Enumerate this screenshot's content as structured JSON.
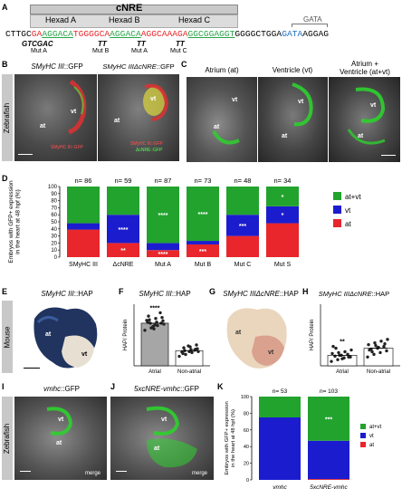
{
  "panelA": {
    "label": "A",
    "title": "cNRE",
    "hexads": [
      "Hexad A",
      "Hexad B",
      "Hexad C"
    ],
    "gata": "GATA",
    "seq": [
      {
        "t": "CTTGC",
        "c": "#000000"
      },
      {
        "t": "GA",
        "c": "#e8262b"
      },
      {
        "t": "AGGACA",
        "c": "#2aa44a"
      },
      {
        "t": "TGGGGCA",
        "c": "#e8262b"
      },
      {
        "t": "AGGACA",
        "c": "#2aa44a"
      },
      {
        "t": "AGGCAAAGA",
        "c": "#e8262b"
      },
      {
        "t": "GGCGGAGGT",
        "c": "#2aa44a"
      },
      {
        "t": "GGGGCTGGA",
        "c": "#000000"
      },
      {
        "t": "GATA",
        "c": "#1e6fc0"
      },
      {
        "t": "AGGAG",
        "c": "#000000"
      }
    ],
    "mutA_seq": "GTCGAC",
    "mutA_label": "Mut A",
    "tt": [
      "TT",
      "TT",
      "TT"
    ],
    "mut_labels": [
      "Mut B",
      "Mut A",
      "Mut C"
    ]
  },
  "panelB": {
    "label": "B",
    "side": "Zebrafish",
    "img1": {
      "title_gene": "SMyHC III",
      "title_rest": "::GFP",
      "vt": "vt",
      "at": "at",
      "leg1": "SMyHC III::GFP",
      "leg2": ""
    },
    "img2": {
      "title_gene": "SMyHC IIIΔcNRE",
      "title_rest": "::GFP",
      "vt": "vt",
      "at": "at",
      "leg1": "SMyHC III::GFP",
      "leg2": "ΔcNRE::GFP"
    }
  },
  "panelC": {
    "label": "C",
    "titles": [
      "Atrium (at)",
      "Ventricle (vt)",
      "Atrium +\nVentricle (at+vt)"
    ],
    "img1": {
      "vt": "vt",
      "at": "at"
    },
    "img2": {
      "vt": "vt",
      "at": "at"
    },
    "img3": {
      "vt": "vt",
      "at": "at"
    }
  },
  "panelD": {
    "label": "D",
    "chart_data": {
      "type": "bar",
      "stacked": true,
      "ylabel": "Embryos with GFP+ expression\nin the heart at 48 hpf (%)",
      "ylim": [
        0,
        100
      ],
      "yticks": [
        0,
        10,
        20,
        30,
        40,
        50,
        60,
        70,
        80,
        90,
        100
      ],
      "categories": [
        "SMyHC III",
        "ΔcNRE",
        "Mut A",
        "Mut B",
        "Mut C",
        "Mut S"
      ],
      "counts": [
        "n= 86",
        "n= 59",
        "n= 87",
        "n= 73",
        "n= 48",
        "n= 34"
      ],
      "series": [
        {
          "name": "at",
          "color": "#e8262b",
          "values": [
            39,
            20,
            10,
            18,
            30,
            48
          ]
        },
        {
          "name": "vt",
          "color": "#1c1ccf",
          "values": [
            9,
            40,
            10,
            5,
            30,
            24
          ]
        },
        {
          "name": "at+vt",
          "color": "#22a32e",
          "values": [
            52,
            40,
            80,
            77,
            40,
            28
          ]
        }
      ],
      "annotations": [
        {
          "cat": 1,
          "series": 0,
          "text": "**"
        },
        {
          "cat": 1,
          "series": 1,
          "text": "****"
        },
        {
          "cat": 2,
          "series": 0,
          "text": "****"
        },
        {
          "cat": 2,
          "series": 2,
          "text": "****"
        },
        {
          "cat": 3,
          "series": 0,
          "text": "***"
        },
        {
          "cat": 3,
          "series": 2,
          "text": "****"
        },
        {
          "cat": 4,
          "series": 1,
          "text": "***"
        },
        {
          "cat": 5,
          "series": 1,
          "text": "*"
        },
        {
          "cat": 5,
          "series": 2,
          "text": "*"
        }
      ],
      "legend": "right"
    }
  },
  "panelE": {
    "label": "E",
    "side": "Mouse",
    "title_gene": "SMyHC III",
    "title_rest": "::HAP",
    "at": "at",
    "vt": "vt"
  },
  "panelF": {
    "label": "F",
    "title_gene": "SMyHC III",
    "title_rest": "::HAP",
    "chart_data": {
      "type": "bar",
      "ylabel": "HAP/ Protein",
      "categories": [
        "Atrial",
        "Non-atrial"
      ],
      "values": [
        0.9,
        0.32
      ],
      "bar_colors": [
        "#a6a6a6",
        "#ffffff"
      ],
      "annotation": "****",
      "points": [
        [
          0.75,
          0.8,
          0.85,
          0.88,
          0.9,
          0.92,
          0.95,
          0.97,
          1.0,
          1.02,
          1.05,
          0.86,
          0.9,
          0.93,
          0.78,
          1.12,
          0.96,
          0.83
        ],
        [
          0.2,
          0.24,
          0.28,
          0.3,
          0.32,
          0.34,
          0.36,
          0.38,
          0.4,
          0.44,
          0.26,
          0.3,
          0.35,
          0.29,
          0.42,
          0.33
        ]
      ]
    }
  },
  "panelG": {
    "label": "G",
    "title_gene": "SMyHC IIIΔcNRE",
    "title_rest": "::HAP",
    "at": "at",
    "vt": "vt"
  },
  "panelH": {
    "label": "H",
    "title_gene": "SMyHC IIIΔcNRE",
    "title_rest": "::HAP",
    "chart_data": {
      "type": "bar",
      "ylabel": "HAP/ Protein",
      "categories": [
        "Atrial",
        "Non-atrial"
      ],
      "values": [
        0.12,
        0.2
      ],
      "bar_colors": [
        "#ffffff",
        "#ffffff"
      ],
      "annotation": "**",
      "points": [
        [
          0.05,
          0.07,
          0.09,
          0.1,
          0.11,
          0.12,
          0.13,
          0.14,
          0.15,
          0.16,
          0.18,
          0.2,
          0.08,
          0.1,
          0.22,
          0.12
        ],
        [
          0.1,
          0.13,
          0.15,
          0.17,
          0.19,
          0.2,
          0.22,
          0.24,
          0.26,
          0.28,
          0.3,
          0.16,
          0.21,
          0.25,
          0.18,
          0.23
        ]
      ]
    }
  },
  "panelI": {
    "label": "I",
    "side": "Zebrafish",
    "title_gene": "vmhc",
    "title_rest": "::GFP",
    "vt": "vt",
    "at": "at",
    "merge": "merge"
  },
  "panelJ": {
    "label": "J",
    "title_gene": "5xcNRE-vmhc",
    "title_rest": "::GFP",
    "vt": "vt",
    "at": "at",
    "merge": "merge"
  },
  "panelK": {
    "label": "K",
    "chart_data": {
      "type": "bar",
      "stacked": true,
      "ylabel": "Embryos with GFP+ expression\nin the heart at 48 hpf (%)",
      "ylim": [
        0,
        100
      ],
      "yticks": [
        0,
        20,
        40,
        60,
        80,
        100
      ],
      "categories": [
        "vmhc",
        "5xcNRE-vmhc"
      ],
      "counts": [
        "n= 53",
        "n= 103"
      ],
      "series": [
        {
          "name": "at",
          "color": "#e8262b",
          "values": [
            0,
            1
          ]
        },
        {
          "name": "vt",
          "color": "#1c1ccf",
          "values": [
            75,
            46
          ]
        },
        {
          "name": "at+vt",
          "color": "#22a32e",
          "values": [
            25,
            53
          ]
        }
      ],
      "annotations": [
        {
          "cat": 1,
          "series": 2,
          "text": "***"
        }
      ],
      "legend": "right"
    }
  }
}
